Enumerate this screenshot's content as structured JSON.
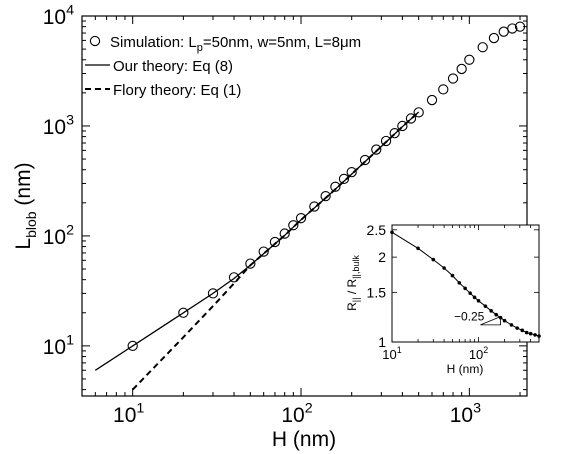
{
  "chart_data": [
    {
      "type": "scatter",
      "xlabel": "H (nm)",
      "ylabel_main": "L",
      "ylabel_sub": "blob",
      "ylabel_tail": " (nm)",
      "xscale": "log",
      "yscale": "log",
      "xlim": [
        5,
        2200
      ],
      "ylim": [
        3.5,
        10000
      ],
      "xticks": [
        {
          "value": 10,
          "base": "10",
          "exp": "1"
        },
        {
          "value": 100,
          "base": "10",
          "exp": "2"
        },
        {
          "value": 1000,
          "base": "10",
          "exp": "3"
        }
      ],
      "yticks": [
        {
          "value": 10,
          "base": "10",
          "exp": "1"
        },
        {
          "value": 100,
          "base": "10",
          "exp": "2"
        },
        {
          "value": 1000,
          "base": "10",
          "exp": "3"
        },
        {
          "value": 10000,
          "base": "10",
          "exp": "4"
        }
      ],
      "legend": {
        "placement": "top-left",
        "entries": [
          {
            "marker": "circle",
            "parts": [
              {
                "t": "Simulation: L"
              },
              {
                "t": "p",
                "sub": true
              },
              {
                "t": "=50nm, w=5nm, L=8μm"
              }
            ]
          },
          {
            "marker": "solid",
            "parts": [
              {
                "t": "Our theory: Eq (8)"
              }
            ]
          },
          {
            "marker": "dashed",
            "parts": [
              {
                "t": "Flory theory: Eq (1)"
              }
            ]
          }
        ]
      },
      "series": [
        {
          "name": "Simulation: Lp=50nm, w=5nm, L=8μm",
          "style": "circle",
          "x": [
            10,
            20,
            30,
            40,
            50,
            60,
            70,
            80,
            90,
            100,
            120,
            140,
            160,
            180,
            200,
            240,
            280,
            320,
            360,
            400,
            450,
            500,
            600,
            700,
            800,
            900,
            1000,
            1200,
            1400,
            1600,
            1800,
            2000
          ],
          "y": [
            10,
            20,
            30,
            42,
            56,
            72,
            88,
            105,
            125,
            145,
            185,
            230,
            280,
            330,
            380,
            490,
            610,
            730,
            860,
            1000,
            1170,
            1330,
            1720,
            2150,
            2700,
            3300,
            4000,
            5200,
            6300,
            7200,
            7700,
            8000
          ]
        },
        {
          "name": "Our theory: Eq (8)",
          "style": "solid",
          "x": [
            6,
            10,
            20,
            30,
            40,
            50,
            60,
            80,
            100,
            150,
            200,
            300,
            400,
            500
          ],
          "y": [
            6,
            10,
            20,
            30,
            41,
            54,
            69,
            101,
            140,
            243,
            365,
            650,
            985,
            1340
          ]
        },
        {
          "name": "Flory theory: Eq (1)",
          "style": "dashed",
          "x": [
            10,
            20,
            30,
            40,
            50,
            60,
            80,
            100,
            150,
            200,
            300,
            400,
            500
          ],
          "y": [
            4,
            12,
            23,
            37,
            54,
            69,
            101,
            140,
            243,
            365,
            650,
            985,
            1340
          ]
        }
      ]
    },
    {
      "type": "line",
      "inset": true,
      "placement": "lower-right",
      "xlabel": "H (nm)",
      "ylabel_parts": [
        {
          "t": "R"
        },
        {
          "t": "||",
          "sub": true
        },
        {
          "t": " / R"
        },
        {
          "t": "||,bulk",
          "sub": true
        }
      ],
      "xscale": "log",
      "yscale": "log",
      "xlim": [
        10,
        500
      ],
      "ylim": [
        1,
        2.6
      ],
      "xticks": [
        {
          "value": 10,
          "base": "10",
          "exp": "1"
        },
        {
          "value": 100,
          "base": "10",
          "exp": "2"
        }
      ],
      "yticks": [
        {
          "value": 1,
          "label": "1"
        },
        {
          "value": 1.5,
          "label": "1.5"
        },
        {
          "value": 2,
          "label": "2"
        },
        {
          "value": 2.5,
          "label": "2.5"
        }
      ],
      "annotation": "−0.25",
      "series": [
        {
          "style": "line-with-dots",
          "x": [
            10,
            20,
            30,
            40,
            50,
            60,
            70,
            80,
            90,
            100,
            120,
            140,
            160,
            180,
            200,
            240,
            280,
            320,
            360,
            400,
            450,
            500
          ],
          "y": [
            2.45,
            2.15,
            1.96,
            1.83,
            1.72,
            1.62,
            1.55,
            1.49,
            1.44,
            1.4,
            1.34,
            1.29,
            1.25,
            1.22,
            1.19,
            1.15,
            1.12,
            1.1,
            1.08,
            1.07,
            1.06,
            1.05
          ]
        }
      ]
    }
  ]
}
